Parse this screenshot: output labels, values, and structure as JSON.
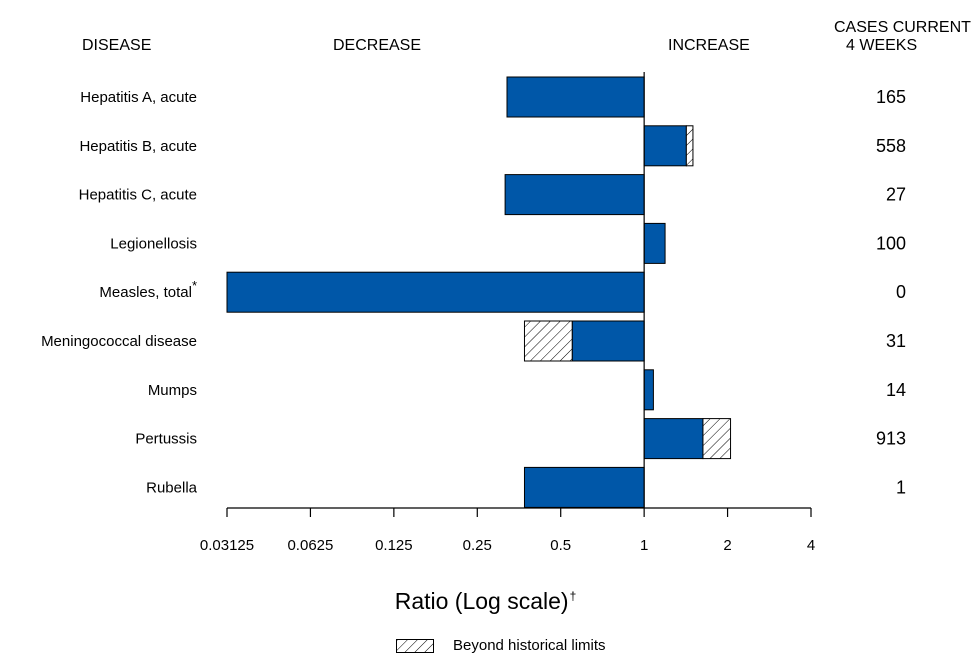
{
  "headers": {
    "disease": "DISEASE",
    "decrease": "DECREASE",
    "increase": "INCREASE",
    "cases_line1": "CASES CURRENT",
    "cases_line2": "4 WEEKS"
  },
  "axis_title": "Ratio (Log scale)",
  "axis_title_marker": "†",
  "legend_label": "Beyond historical limits",
  "colors": {
    "bar": "#0057A8",
    "hatch": "#000000",
    "axis": "#000000"
  },
  "chart_data": {
    "type": "bar",
    "orientation": "horizontal",
    "x_scale": "log2",
    "xlabel": "Ratio (Log scale)",
    "xlim": [
      0.03125,
      4
    ],
    "baseline": 1,
    "x_ticks": [
      0.03125,
      0.0625,
      0.125,
      0.25,
      0.5,
      1,
      2,
      4
    ],
    "x_tick_labels": [
      "0.03125",
      "0.0625",
      "0.125",
      "0.25",
      "0.5",
      "1",
      "2",
      "4"
    ],
    "categories": [
      "Hepatitis A, acute",
      "Hepatitis B, acute",
      "Hepatitis C, acute",
      "Legionellosis",
      "Measles, total",
      "Meningococcal disease",
      "Mumps",
      "Pertussis",
      "Rubella"
    ],
    "category_markers": [
      "",
      "",
      "",
      "",
      "*",
      "",
      "",
      "",
      ""
    ],
    "ratios": [
      0.32,
      1.5,
      0.315,
      1.19,
      0.03125,
      0.37,
      1.08,
      2.05,
      0.37
    ],
    "historical_limit": [
      null,
      1.42,
      null,
      null,
      null,
      0.55,
      null,
      1.63,
      null
    ],
    "beyond_historical_limits": [
      false,
      true,
      false,
      false,
      false,
      true,
      false,
      true,
      false
    ],
    "cases_current_4_weeks": [
      165,
      558,
      27,
      100,
      0,
      31,
      14,
      913,
      1
    ],
    "cases_labels": [
      "165",
      "558",
      "27",
      "100",
      "0",
      "31",
      "14",
      "913",
      "1"
    ],
    "legend": [
      "Beyond historical limits"
    ]
  }
}
